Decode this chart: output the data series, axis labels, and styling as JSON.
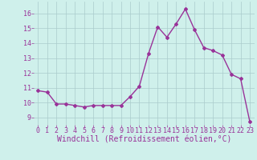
{
  "x": [
    0,
    1,
    2,
    3,
    4,
    5,
    6,
    7,
    8,
    9,
    10,
    11,
    12,
    13,
    14,
    15,
    16,
    17,
    18,
    19,
    20,
    21,
    22,
    23
  ],
  "y": [
    10.8,
    10.7,
    9.9,
    9.9,
    9.8,
    9.7,
    9.8,
    9.8,
    9.8,
    9.8,
    10.4,
    11.1,
    13.3,
    15.1,
    14.4,
    15.3,
    16.3,
    14.9,
    13.7,
    13.5,
    13.2,
    11.9,
    11.6,
    8.7
  ],
  "line_color": "#993399",
  "marker": "D",
  "marker_size": 2,
  "line_width": 1.0,
  "bg_color": "#cff0eb",
  "grid_color": "#aacccc",
  "xlabel": "Windchill (Refroidissement éolien,°C)",
  "xlabel_color": "#993399",
  "xlabel_fontsize": 7,
  "tick_color": "#993399",
  "tick_fontsize": 6,
  "ylim": [
    8.5,
    16.8
  ],
  "yticks": [
    9,
    10,
    11,
    12,
    13,
    14,
    15,
    16
  ],
  "xlim": [
    -0.5,
    23.5
  ],
  "xticks": [
    0,
    1,
    2,
    3,
    4,
    5,
    6,
    7,
    8,
    9,
    10,
    11,
    12,
    13,
    14,
    15,
    16,
    17,
    18,
    19,
    20,
    21,
    22,
    23
  ]
}
